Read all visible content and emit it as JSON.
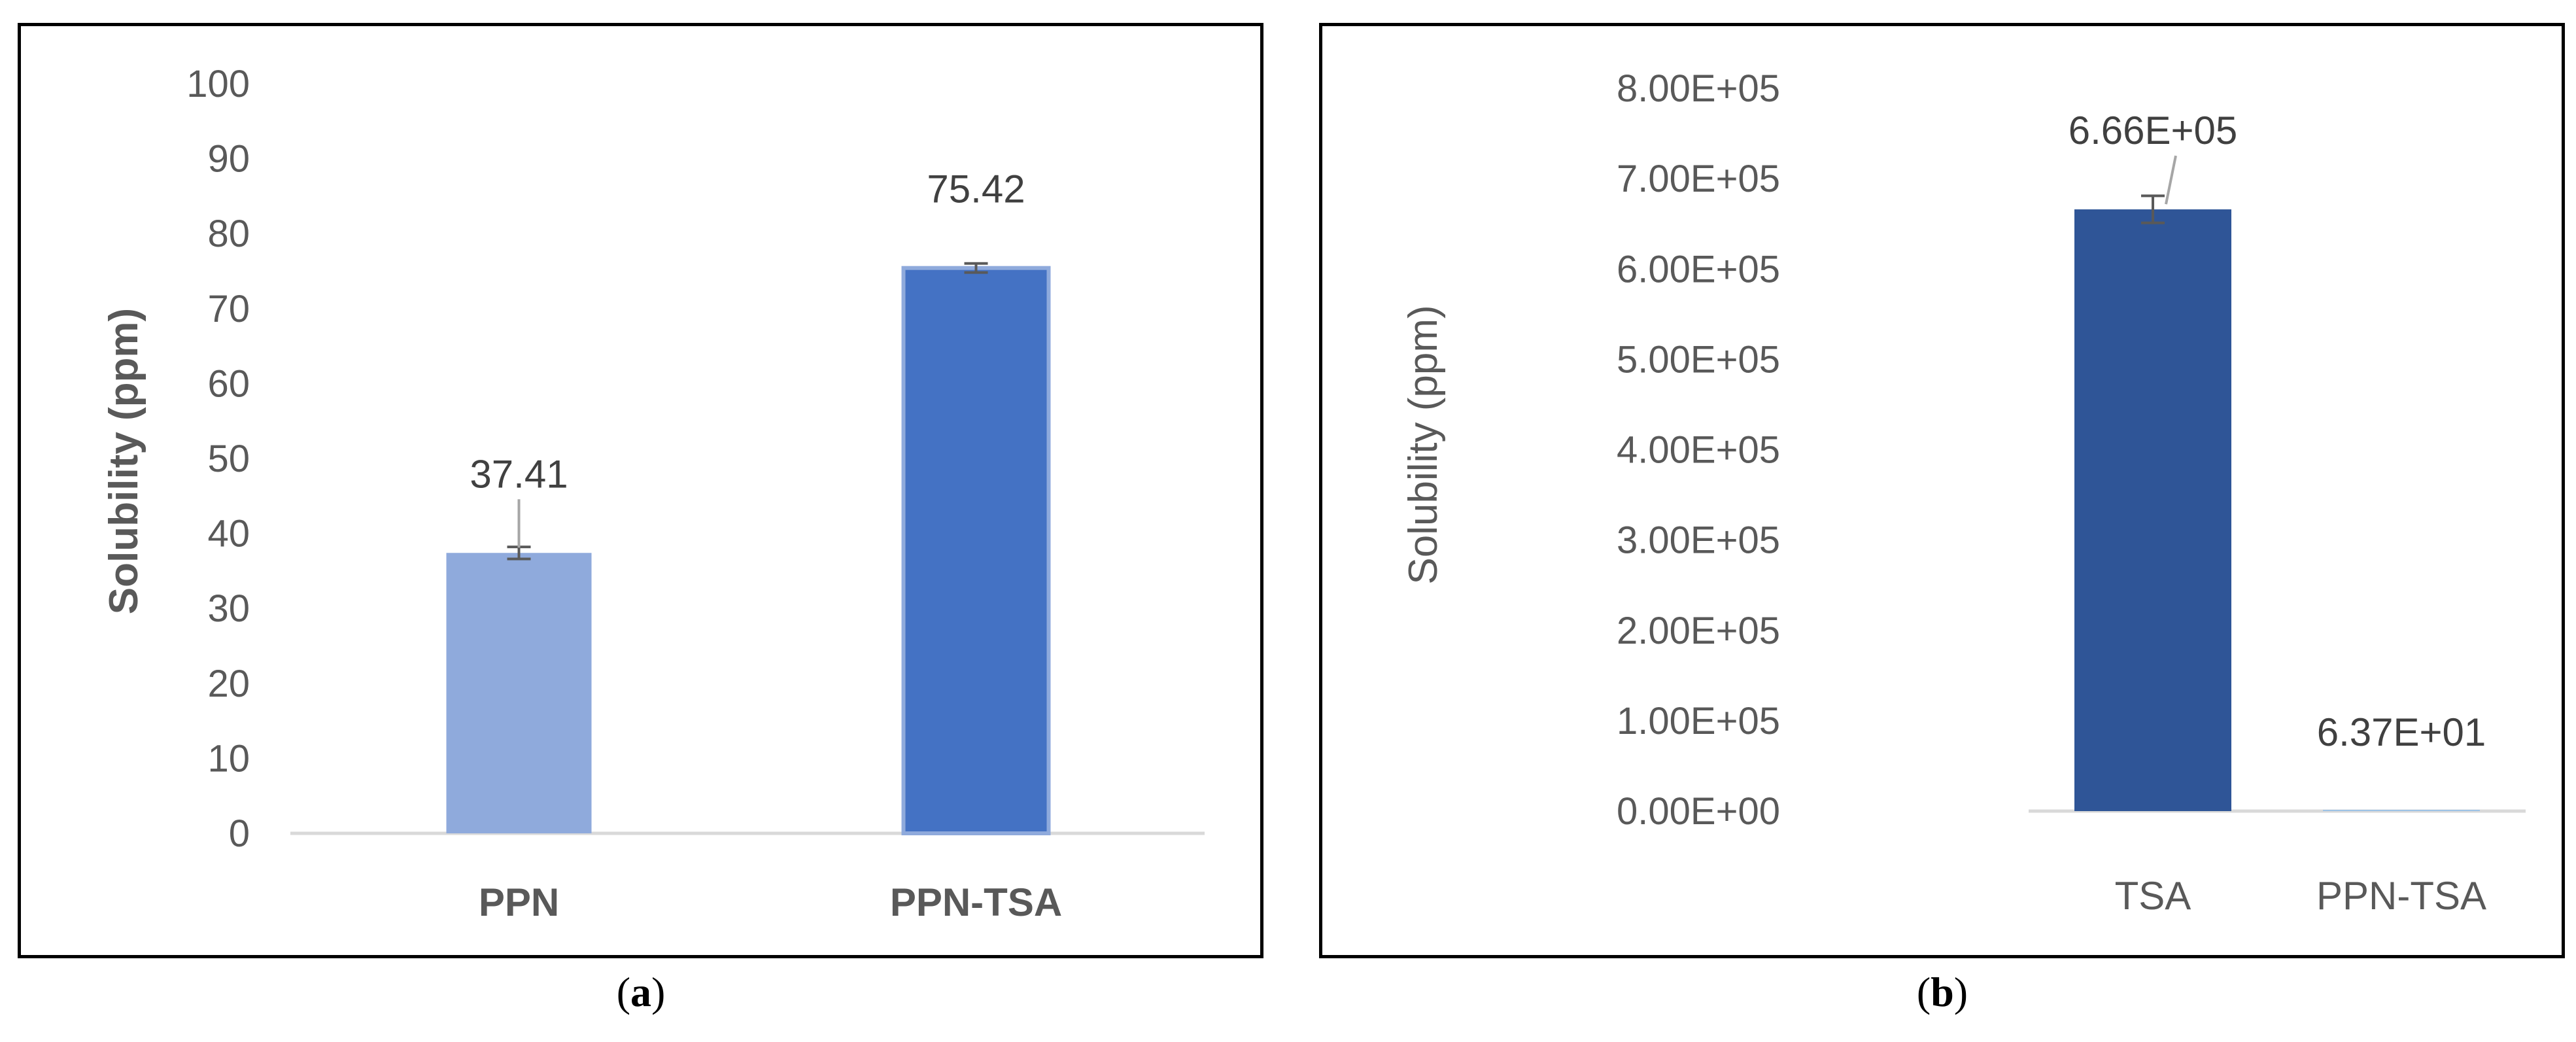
{
  "chart_data": [
    {
      "type": "bar",
      "panel": "a",
      "caption_letter": "a",
      "categories": [
        "PPN",
        "PPN-TSA"
      ],
      "values": [
        37.41,
        75.42
      ],
      "data_labels": [
        "37.41",
        "75.42"
      ],
      "error": [
        0.8,
        0.6
      ],
      "colors": [
        "#8faadc",
        "#4472c4"
      ],
      "ylabel": "Solubility (ppm)",
      "ylim": [
        0,
        100
      ],
      "yticks": [
        0,
        10,
        20,
        30,
        40,
        50,
        60,
        70,
        80,
        90,
        100
      ],
      "ytick_labels": [
        "0",
        "10",
        "20",
        "30",
        "40",
        "50",
        "60",
        "70",
        "80",
        "90",
        "100"
      ],
      "grid": false
    },
    {
      "type": "bar",
      "panel": "b",
      "caption_letter": "b",
      "categories": [
        "TSA",
        "PPN-TSA"
      ],
      "values": [
        666000,
        63.7
      ],
      "data_labels": [
        "6.66E+05",
        "6.37E+01"
      ],
      "error": [
        15000,
        0
      ],
      "colors": [
        "#2f5597",
        "#9dc3e6"
      ],
      "ylabel": "Solubility (ppm)",
      "ylim": [
        0,
        800000
      ],
      "yticks": [
        0,
        100000,
        200000,
        300000,
        400000,
        500000,
        600000,
        700000,
        800000
      ],
      "ytick_labels": [
        "0.00E+00",
        "1.00E+05",
        "2.00E+05",
        "3.00E+05",
        "4.00E+05",
        "5.00E+05",
        "6.00E+05",
        "7.00E+05",
        "8.00E+05"
      ],
      "grid": false
    }
  ],
  "captions": {
    "a": "a",
    "b": "b"
  }
}
